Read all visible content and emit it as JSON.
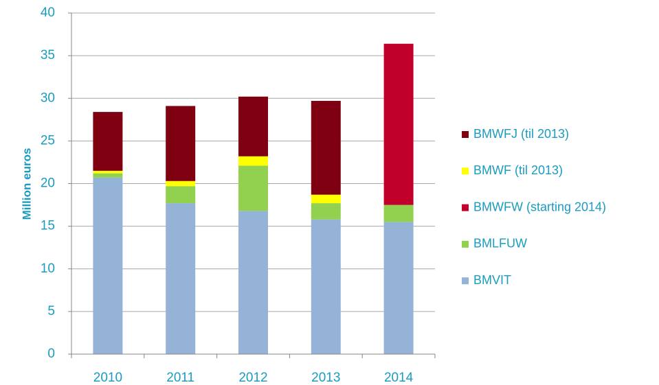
{
  "chart_data": {
    "type": "stacked_bar",
    "y_label": "Million euros",
    "categories": [
      "2010",
      "2011",
      "2012",
      "2013",
      "2014"
    ],
    "series": [
      {
        "name": "BMVIT",
        "color": "#95b3d7",
        "values": [
          20.7,
          17.7,
          16.8,
          15.8,
          15.5
        ]
      },
      {
        "name": "BMLFUW",
        "color": "#92d050",
        "values": [
          0.5,
          2.0,
          5.3,
          1.9,
          2.0
        ]
      },
      {
        "name": "BMWFW (starting 2014)",
        "color": "#c0002a",
        "values": [
          null,
          null,
          null,
          null,
          18.9
        ]
      },
      {
        "name": "BMWF (til 2013)",
        "color": "#ffff00",
        "values": [
          0.3,
          0.6,
          1.1,
          1.0,
          null
        ]
      },
      {
        "name": "BMWFJ (til 2013)",
        "color": "#7f0010",
        "values": [
          6.9,
          8.8,
          7.0,
          11.0,
          null
        ]
      }
    ],
    "ylim": [
      0,
      40
    ],
    "yticks": [
      0,
      5,
      10,
      15,
      20,
      25,
      30,
      35,
      40
    ],
    "grid": true
  }
}
